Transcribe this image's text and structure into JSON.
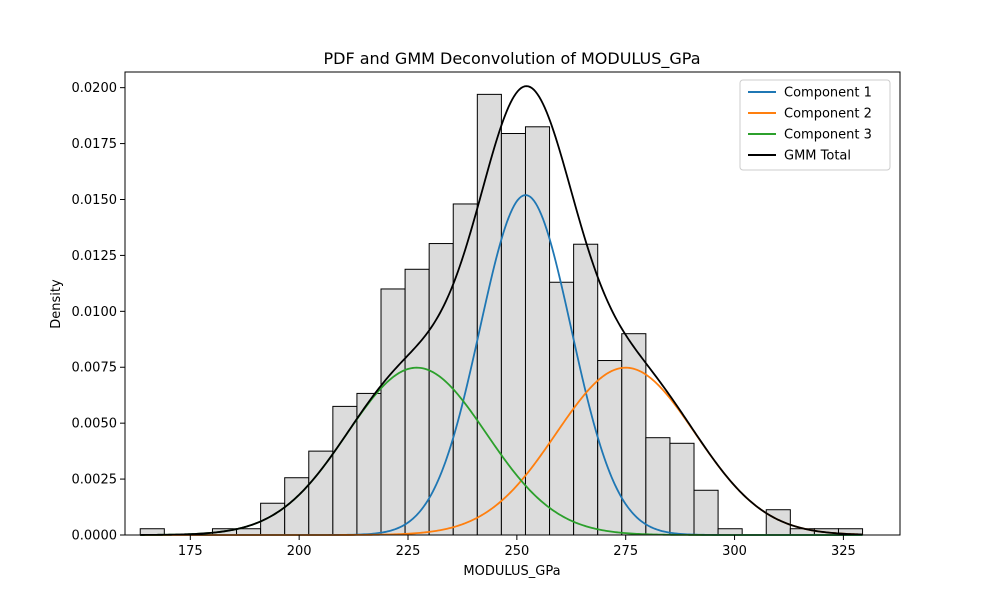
{
  "chart_data": {
    "type": "bar",
    "title": "PDF and GMM Deconvolution of MODULUS_GPa",
    "xlabel": "MODULUS_GPa",
    "ylabel": "Density",
    "xlim": [
      160,
      338
    ],
    "ylim": [
      0,
      0.0207
    ],
    "xticks": [
      175,
      200,
      225,
      250,
      275,
      300,
      325
    ],
    "yticks": [
      0.0,
      0.0025,
      0.005,
      0.0075,
      0.01,
      0.0125,
      0.015,
      0.0175,
      0.02
    ],
    "ytick_labels": [
      "0.0000",
      "0.0025",
      "0.0050",
      "0.0075",
      "0.0100",
      "0.0125",
      "0.0150",
      "0.0175",
      "0.0200"
    ],
    "histogram": {
      "bin_start": 163.5,
      "bin_width": 5.53,
      "values": [
        0.00028,
        0.0,
        0.0,
        0.00028,
        0.00028,
        0.00142,
        0.00256,
        0.00375,
        0.00575,
        0.00633,
        0.011,
        0.01188,
        0.01303,
        0.0148,
        0.0197,
        0.01795,
        0.01825,
        0.0113,
        0.013,
        0.0078,
        0.009,
        0.00435,
        0.0041,
        0.002,
        0.00028,
        0.0,
        0.00113,
        0.00028,
        0.00028,
        0.00028
      ],
      "fill": "#dcdcdc",
      "edge": "#000000"
    },
    "series": [
      {
        "name": "Component 1",
        "color": "#1f77b4",
        "mean": 252.0,
        "sd": 10.5,
        "weight": 0.4
      },
      {
        "name": "Component 2",
        "color": "#ff7f0e",
        "mean": 275.0,
        "sd": 16.0,
        "weight": 0.3
      },
      {
        "name": "Component 3",
        "color": "#2ca02c",
        "mean": 227.0,
        "sd": 16.0,
        "weight": 0.3
      },
      {
        "name": "GMM Total",
        "color": "#000000"
      }
    ],
    "legend_position": "top-right",
    "grid": false
  }
}
